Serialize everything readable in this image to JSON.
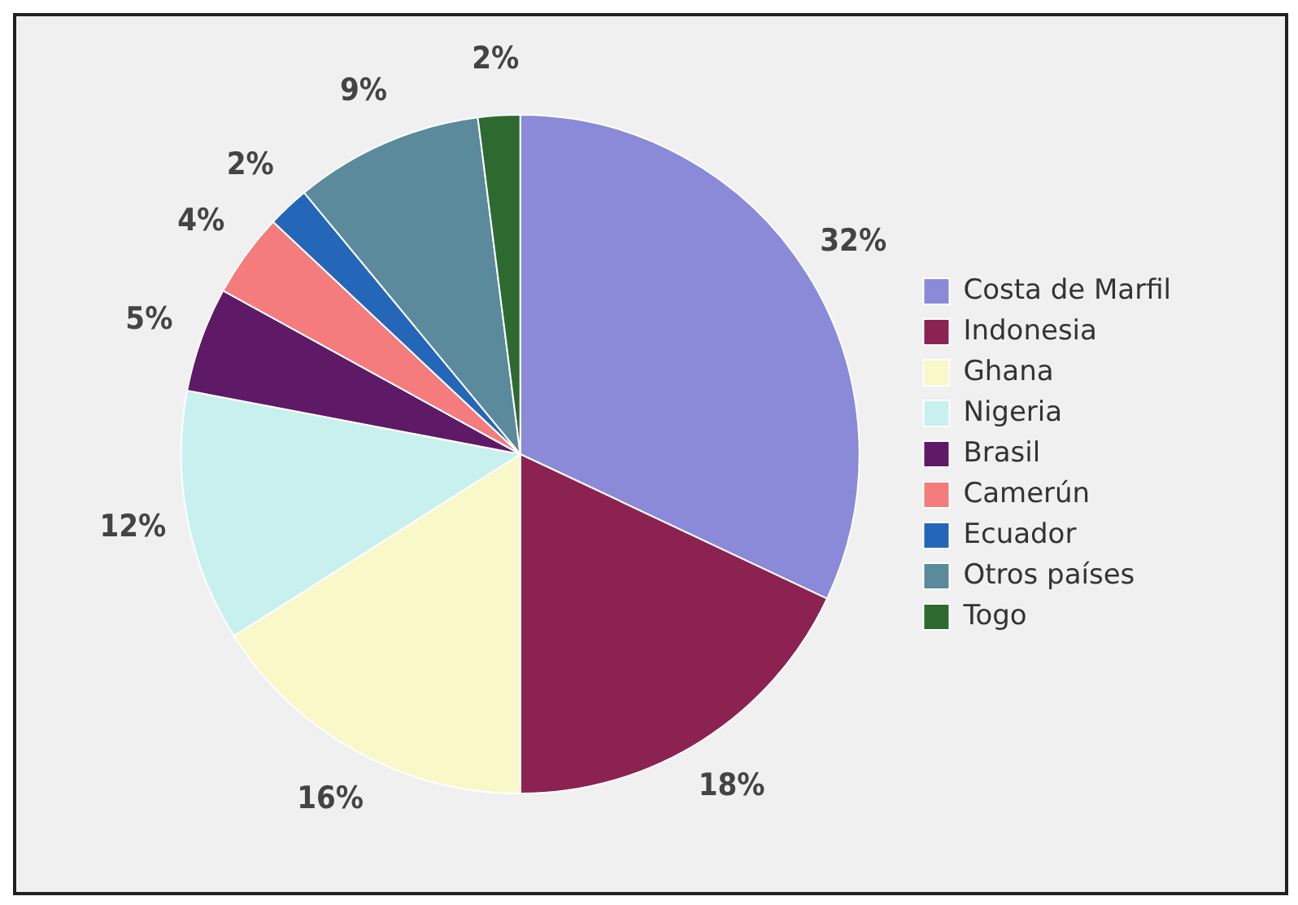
{
  "chart_data": {
    "type": "pie",
    "categories": [
      "Costa de Marfil",
      "Indonesia",
      "Ghana",
      "Nigeria",
      "Brasil",
      "Camerún",
      "Ecuador",
      "Otros países",
      "Togo"
    ],
    "values": [
      32,
      18,
      16,
      12,
      5,
      4,
      2,
      9,
      2
    ],
    "value_labels": [
      "32%",
      "18%",
      "16%",
      "12%",
      "5%",
      "4%",
      "2%",
      "9%",
      "2%"
    ],
    "colors": [
      "#8a8ad8",
      "#8c2252",
      "#f8f8c8",
      "#c8f0ee",
      "#5e1a66",
      "#f47c7c",
      "#2466b8",
      "#5a8a9c",
      "#2e6a30"
    ],
    "legend": "right"
  }
}
